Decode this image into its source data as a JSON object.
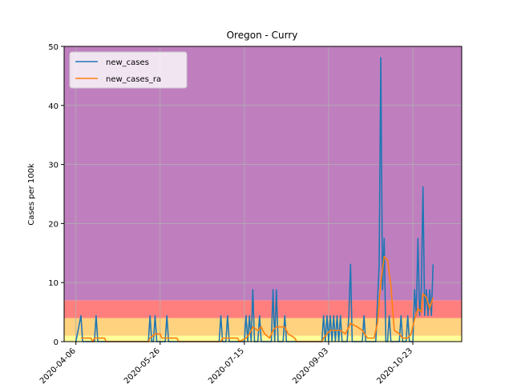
{
  "chart_data": {
    "type": "line",
    "title": "Oregon - Curry",
    "xlabel": "",
    "ylabel": "Cases per 100k",
    "ylim": [
      0,
      50
    ],
    "xlim": [
      "2020-03-30",
      "2020-11-21"
    ],
    "grid": true,
    "legend_position": "top-left",
    "yticks": [
      0,
      10,
      20,
      30,
      40,
      50
    ],
    "xticks": [
      "2020-04-06",
      "2020-05-26",
      "2020-07-15",
      "2020-09-03",
      "2020-10-23"
    ],
    "bands": [
      {
        "from": 0,
        "to": 1,
        "color": "#ffff99"
      },
      {
        "from": 1,
        "to": 4,
        "color": "#ffd27f"
      },
      {
        "from": 4,
        "to": 7,
        "color": "#ff7f7f"
      },
      {
        "from": 7,
        "to": 50,
        "color": "#bf7fbf"
      }
    ],
    "series": [
      {
        "name": "new_cases",
        "color": "#1f77b4",
        "points": [
          [
            "2020-04-06",
            0
          ],
          [
            "2020-04-09",
            4.4
          ],
          [
            "2020-04-10",
            0
          ],
          [
            "2020-04-17",
            0
          ],
          [
            "2020-04-18",
            4.4
          ],
          [
            "2020-04-19",
            0
          ],
          [
            "2020-05-19",
            0
          ],
          [
            "2020-05-20",
            4.4
          ],
          [
            "2020-05-21",
            0
          ],
          [
            "2020-05-22",
            0
          ],
          [
            "2020-05-23",
            4.4
          ],
          [
            "2020-05-24",
            0
          ],
          [
            "2020-05-29",
            0
          ],
          [
            "2020-05-30",
            4.4
          ],
          [
            "2020-05-31",
            0
          ],
          [
            "2020-06-30",
            0
          ],
          [
            "2020-07-01",
            4.4
          ],
          [
            "2020-07-02",
            0
          ],
          [
            "2020-07-04",
            0
          ],
          [
            "2020-07-05",
            4.4
          ],
          [
            "2020-07-06",
            0
          ],
          [
            "2020-07-15",
            0
          ],
          [
            "2020-07-16",
            4.4
          ],
          [
            "2020-07-17",
            0
          ],
          [
            "2020-07-18",
            4.4
          ],
          [
            "2020-07-19",
            0
          ],
          [
            "2020-07-20",
            8.8
          ],
          [
            "2020-07-21",
            0
          ],
          [
            "2020-07-23",
            0
          ],
          [
            "2020-07-24",
            4.4
          ],
          [
            "2020-07-25",
            0
          ],
          [
            "2020-07-31",
            0
          ],
          [
            "2020-08-01",
            8.8
          ],
          [
            "2020-08-02",
            0
          ],
          [
            "2020-08-03",
            8.8
          ],
          [
            "2020-08-04",
            0
          ],
          [
            "2020-08-07",
            0
          ],
          [
            "2020-08-08",
            4.4
          ],
          [
            "2020-08-09",
            0
          ],
          [
            "2020-08-30",
            0
          ],
          [
            "2020-08-31",
            4.4
          ],
          [
            "2020-09-01",
            0
          ],
          [
            "2020-09-02",
            4.4
          ],
          [
            "2020-09-03",
            0
          ],
          [
            "2020-09-04",
            4.4
          ],
          [
            "2020-09-05",
            0
          ],
          [
            "2020-09-06",
            4.4
          ],
          [
            "2020-09-07",
            0
          ],
          [
            "2020-09-08",
            4.4
          ],
          [
            "2020-09-09",
            0
          ],
          [
            "2020-09-10",
            4.4
          ],
          [
            "2020-09-11",
            0
          ],
          [
            "2020-09-14",
            0
          ],
          [
            "2020-09-15",
            4.4
          ],
          [
            "2020-09-16",
            13.1
          ],
          [
            "2020-09-17",
            0
          ],
          [
            "2020-09-23",
            0
          ],
          [
            "2020-09-24",
            4.4
          ],
          [
            "2020-09-25",
            0
          ],
          [
            "2020-10-01",
            0
          ],
          [
            "2020-10-03",
            13.1
          ],
          [
            "2020-10-04",
            48.1
          ],
          [
            "2020-10-05",
            8.8
          ],
          [
            "2020-10-06",
            17.5
          ],
          [
            "2020-10-07",
            0
          ],
          [
            "2020-10-08",
            0
          ],
          [
            "2020-10-09",
            4.4
          ],
          [
            "2020-10-10",
            0
          ],
          [
            "2020-10-15",
            0
          ],
          [
            "2020-10-16",
            4.4
          ],
          [
            "2020-10-17",
            0
          ],
          [
            "2020-10-19",
            0
          ],
          [
            "2020-10-20",
            4.4
          ],
          [
            "2020-10-21",
            0
          ],
          [
            "2020-10-23",
            0
          ],
          [
            "2020-10-24",
            8.8
          ],
          [
            "2020-10-25",
            4.4
          ],
          [
            "2020-10-26",
            17.5
          ],
          [
            "2020-10-27",
            4.4
          ],
          [
            "2020-10-28",
            8.8
          ],
          [
            "2020-10-29",
            26.2
          ],
          [
            "2020-10-30",
            4.4
          ],
          [
            "2020-10-31",
            8.8
          ],
          [
            "2020-11-01",
            4.4
          ],
          [
            "2020-11-02",
            8.8
          ],
          [
            "2020-11-03",
            4.4
          ],
          [
            "2020-11-04",
            13.1
          ]
        ]
      },
      {
        "name": "new_cases_ra",
        "color": "#ff7f0e",
        "points": [
          [
            "2020-04-09",
            0.6
          ],
          [
            "2020-04-15",
            0.6
          ],
          [
            "2020-04-16",
            0
          ],
          [
            "2020-04-17",
            0.6
          ],
          [
            "2020-04-23",
            0.6
          ],
          [
            "2020-04-24",
            0
          ],
          [
            "2020-05-19",
            0
          ],
          [
            "2020-05-20",
            0.6
          ],
          [
            "2020-05-23",
            1.3
          ],
          [
            "2020-05-26",
            1.3
          ],
          [
            "2020-05-27",
            0.6
          ],
          [
            "2020-05-30",
            0.6
          ],
          [
            "2020-06-05",
            0.6
          ],
          [
            "2020-06-06",
            0
          ],
          [
            "2020-07-01",
            0
          ],
          [
            "2020-07-02",
            0.6
          ],
          [
            "2020-07-05",
            0.6
          ],
          [
            "2020-07-08",
            0.6
          ],
          [
            "2020-07-11",
            0.6
          ],
          [
            "2020-07-12",
            0
          ],
          [
            "2020-07-16",
            0.6
          ],
          [
            "2020-07-18",
            1.3
          ],
          [
            "2020-07-20",
            2.5
          ],
          [
            "2020-07-23",
            1.9
          ],
          [
            "2020-07-25",
            2.5
          ],
          [
            "2020-07-27",
            1.3
          ],
          [
            "2020-07-30",
            0.6
          ],
          [
            "2020-08-01",
            1.9
          ],
          [
            "2020-08-03",
            2.5
          ],
          [
            "2020-08-06",
            2.5
          ],
          [
            "2020-08-08",
            2.5
          ],
          [
            "2020-08-10",
            1.3
          ],
          [
            "2020-08-14",
            0.6
          ],
          [
            "2020-08-15",
            0
          ],
          [
            "2020-08-30",
            0
          ],
          [
            "2020-08-31",
            0.6
          ],
          [
            "2020-09-02",
            1.3
          ],
          [
            "2020-09-04",
            1.9
          ],
          [
            "2020-09-10",
            1.9
          ],
          [
            "2020-09-13",
            1.3
          ],
          [
            "2020-09-16",
            3.1
          ],
          [
            "2020-09-20",
            2.5
          ],
          [
            "2020-09-23",
            1.9
          ],
          [
            "2020-09-26",
            0.6
          ],
          [
            "2020-09-30",
            0.6
          ],
          [
            "2020-10-02",
            3.1
          ],
          [
            "2020-10-04",
            10.0
          ],
          [
            "2020-10-06",
            14.4
          ],
          [
            "2020-10-08",
            13.8
          ],
          [
            "2020-10-10",
            9.4
          ],
          [
            "2020-10-12",
            1.9
          ],
          [
            "2020-10-15",
            1.3
          ],
          [
            "2020-10-17",
            0.6
          ],
          [
            "2020-10-20",
            0.6
          ],
          [
            "2020-10-22",
            1.3
          ],
          [
            "2020-10-24",
            3.8
          ],
          [
            "2020-10-26",
            5.6
          ],
          [
            "2020-10-28",
            5.0
          ],
          [
            "2020-10-29",
            8.1
          ],
          [
            "2020-10-31",
            7.5
          ],
          [
            "2020-11-02",
            5.6
          ],
          [
            "2020-11-04",
            7.5
          ]
        ]
      }
    ]
  }
}
